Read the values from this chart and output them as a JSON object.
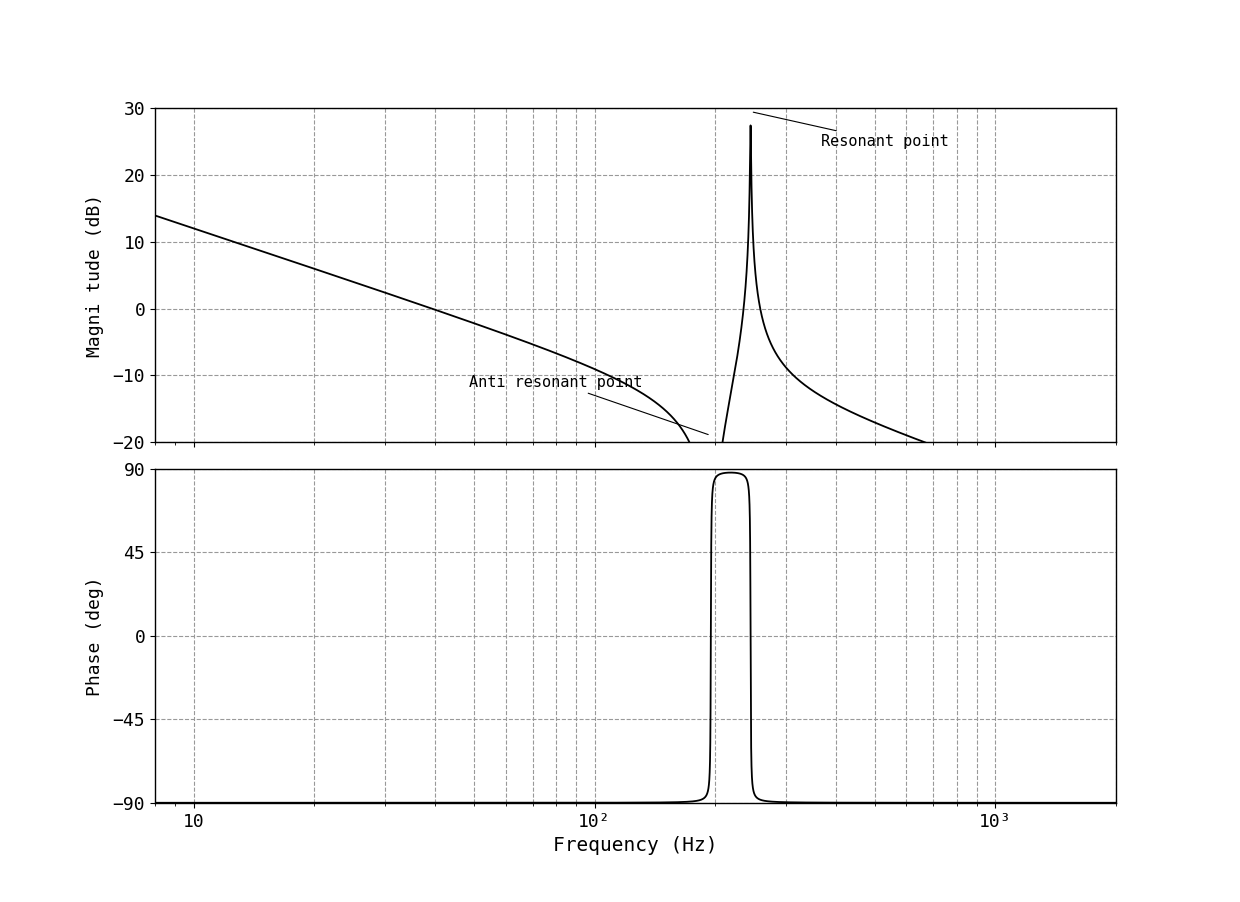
{
  "title": "",
  "xlabel": "Frequency (Hz)",
  "ylabel_mag": "Magni tude (dB)",
  "ylabel_phase": "Phase (deg)",
  "freq_min": 8,
  "freq_max": 2000,
  "mag_ylim": [
    -20,
    30
  ],
  "phase_ylim": [
    -90,
    90
  ],
  "mag_yticks": [
    -20,
    -10,
    0,
    10,
    20,
    30
  ],
  "phase_yticks": [
    -90,
    -45,
    0,
    45,
    90
  ],
  "anti_resonant_freq": 195,
  "resonant_freq": 245,
  "damping_anti": 0.002,
  "damping_res": 0.002,
  "gain_at_10Hz_dB": 12.0,
  "annotation_resonant": "Resonant point",
  "annotation_anti": "Anti resonant point",
  "bg_color": "#ffffff",
  "line_color": "#000000",
  "grid_color_h": "#999999",
  "grid_color_v": "#999999",
  "font_size": 13,
  "annotation_font_size": 11,
  "xtick_labels": [
    "10",
    "10²",
    "10³"
  ],
  "xtick_positions": [
    10,
    100,
    1000
  ],
  "vgrid_freqs": [
    10,
    20,
    30,
    40,
    50,
    60,
    70,
    80,
    90,
    100,
    200,
    300,
    400,
    500,
    600,
    700,
    800,
    900,
    1000,
    2000
  ]
}
